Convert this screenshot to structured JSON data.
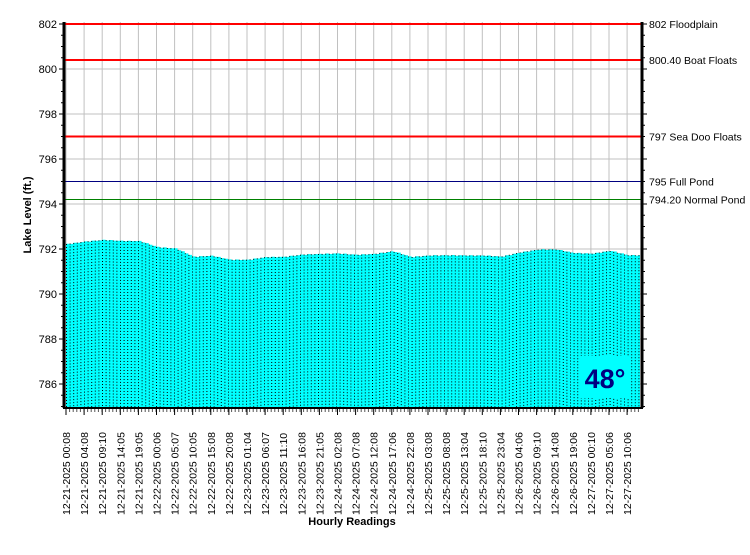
{
  "chart_data": {
    "type": "bar",
    "title": "",
    "xlabel": "Hourly Readings",
    "ylabel": "Lake Level (ft.)",
    "ylim": [
      785,
      802
    ],
    "yticks": [
      786,
      788,
      790,
      792,
      794,
      796,
      798,
      800,
      802
    ],
    "grid": true,
    "colors": {
      "bars": "#00ffff",
      "flood": "#ff0000",
      "full_pond": "#000080",
      "normal_pond": "#008000",
      "temp_text": "#000080"
    },
    "x_tick_labels": [
      "12-21-2025 00:08",
      "12-21-2025 04:08",
      "12-21-2025 09:10",
      "12-21-2025 14:05",
      "12-21-2025 19:05",
      "12-22-2025 00:06",
      "12-22-2025 05:07",
      "12-22-2025 10:05",
      "12-22-2025 15:08",
      "12-22-2025 20:08",
      "12-23-2025 01:04",
      "12-23-2025 06:07",
      "12-23-2025 11:10",
      "12-23-2025 16:08",
      "12-23-2025 21:05",
      "12-24-2025 02:08",
      "12-24-2025 07:08",
      "12-24-2025 12:08",
      "12-24-2025 17:06",
      "12-24-2025 22:08",
      "12-25-2025 03:08",
      "12-25-2025 08:08",
      "12-25-2025 13:04",
      "12-25-2025 18:10",
      "12-25-2025 23:04",
      "12-26-2025 04:06",
      "12-26-2025 09:10",
      "12-26-2025 14:08",
      "12-26-2025 19:06",
      "12-27-2025 00:10",
      "12-27-2025 05:06",
      "12-27-2025 10:06"
    ],
    "values_at_ticks": [
      792.22,
      792.33,
      792.4,
      792.36,
      792.35,
      792.08,
      792.02,
      791.65,
      791.7,
      791.52,
      791.52,
      791.64,
      791.65,
      791.75,
      791.78,
      791.8,
      791.74,
      791.78,
      791.9,
      791.64,
      791.71,
      791.72,
      791.71,
      791.71,
      791.66,
      791.84,
      791.97,
      791.98,
      791.82,
      791.79,
      791.92,
      791.72
    ],
    "reference_lines": [
      {
        "value": 802,
        "label": "802 Floodplain",
        "color": "#ff0000",
        "weight": "thick"
      },
      {
        "value": 800.4,
        "label": "800.40 Boat Floats",
        "color": "#ff0000",
        "weight": "thick"
      },
      {
        "value": 797,
        "label": "797 Sea Doo Floats",
        "color": "#ff0000",
        "weight": "thick"
      },
      {
        "value": 795,
        "label": "795 Full Pond",
        "color": "#000080",
        "weight": "thin"
      },
      {
        "value": 794.2,
        "label": "794.20 Normal Pond",
        "color": "#008000",
        "weight": "thin"
      }
    ],
    "temperature": "48°"
  }
}
